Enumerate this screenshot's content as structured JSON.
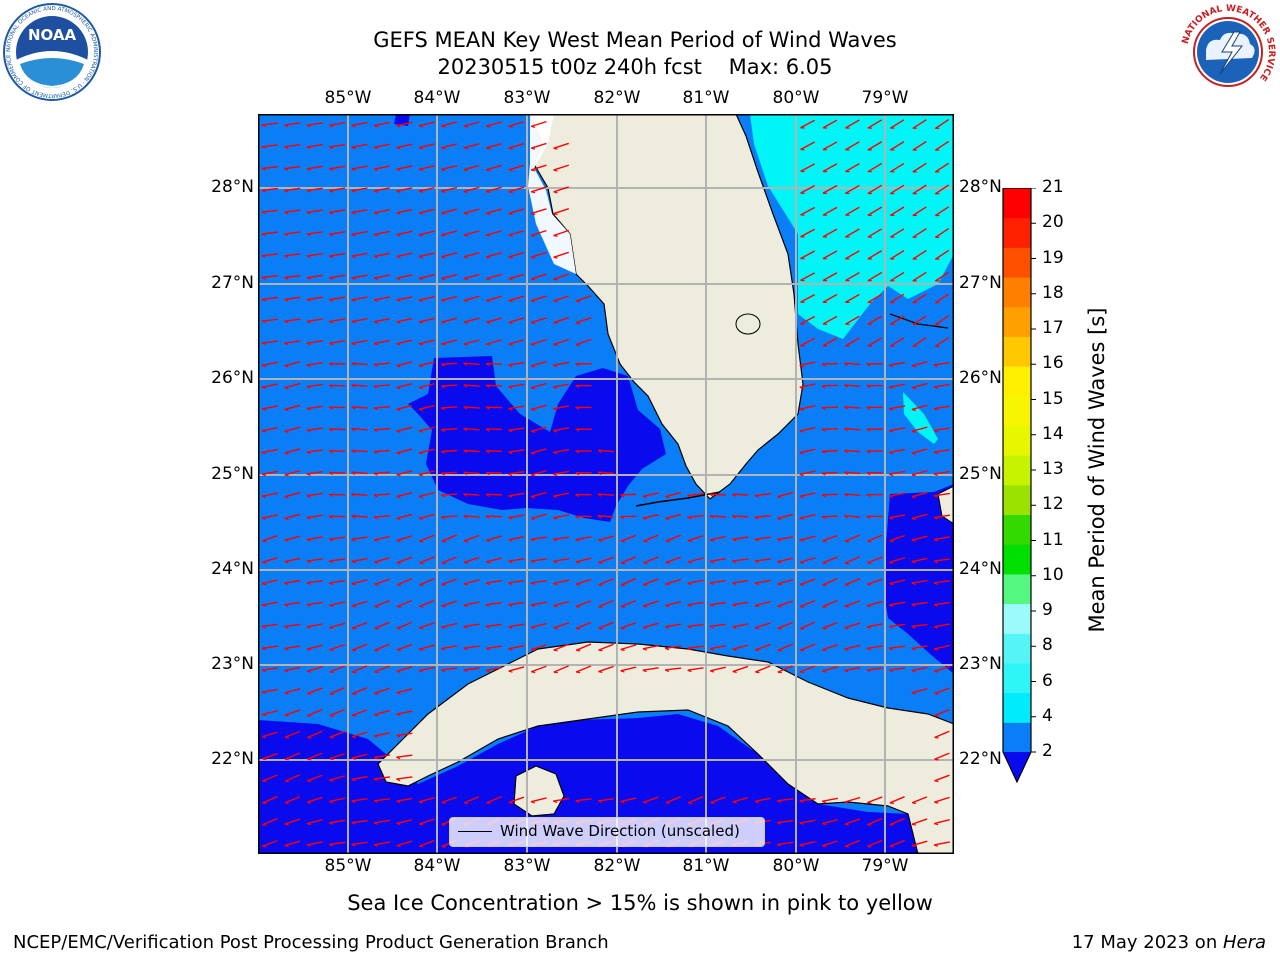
{
  "header": {
    "title_line1": "GEFS MEAN Key West Mean Period of Wind Waves",
    "title_line2": "20230515 t00z 240h fcst    Max: 6.05"
  },
  "logos": {
    "noaa_text": "NOAA",
    "noaa_ring": "NATIONAL OCEANIC AND ATMOSPHERIC ADMINISTRATION · U.S. DEPARTMENT OF COMMERCE",
    "nws_ring": "NATIONAL WEATHER SERVICE"
  },
  "map": {
    "lon_labels": [
      "85°W",
      "84°W",
      "83°W",
      "82°W",
      "81°W",
      "80°W",
      "79°W"
    ],
    "lat_labels": [
      "28°N",
      "27°N",
      "26°N",
      "25°N",
      "24°N",
      "23°N",
      "22°N"
    ],
    "legend_label": "Wind Wave Direction (unscaled)",
    "colors": {
      "land": "#eeeddd",
      "level_2_4": "#0a7ef6",
      "level_lt2": "#0a0aef",
      "level_4_6": "#00f6f6",
      "vectors": "#ff0000",
      "grid": "#b3b3b3"
    }
  },
  "colorbar": {
    "label": "Mean Period of Wind Waves [s]",
    "ticks": [
      "2",
      "4",
      "6",
      "8",
      "9",
      "10",
      "11",
      "12",
      "13",
      "14",
      "15",
      "16",
      "17",
      "18",
      "19",
      "20",
      "21"
    ],
    "segments": [
      "#0a7ef6",
      "#00ebfb",
      "#2ef6f6",
      "#55f5f5",
      "#9bfbfb",
      "#54f77f",
      "#00e000",
      "#33d900",
      "#9ce200",
      "#c7f200",
      "#e6f700",
      "#f7f500",
      "#fff000",
      "#ffc800",
      "#ffa000",
      "#ff7f00",
      "#ff5000",
      "#ff2000",
      "#ff0000"
    ],
    "extend_color": "#0a0aef"
  },
  "notes": {
    "ice": "Sea Ice Concentration > 15% is shown in pink to yellow"
  },
  "footer": {
    "left": "NCEP/EMC/Verification Post Processing Product Generation Branch",
    "right_date": "17 May 2023 on ",
    "right_host": "Hera"
  }
}
